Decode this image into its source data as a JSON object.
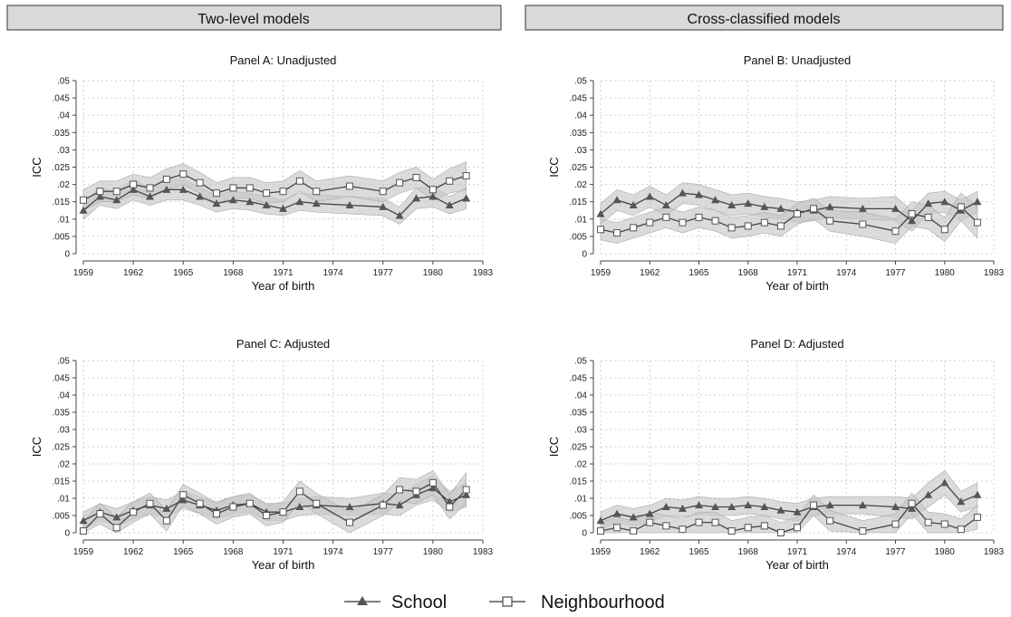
{
  "headers": [
    "Two-level models",
    "Cross-classified models"
  ],
  "legend": {
    "school": "School",
    "neighbourhood": "Neighbourhood"
  },
  "colors": {
    "header_bg": "#d9d9d9",
    "school": "#555555",
    "neighbourhood": "#555555",
    "ci_band": "#c8c8c8",
    "grid": "#d0d0d0"
  },
  "chart_data": [
    {
      "type": "line",
      "title": "Panel A: Unadjusted",
      "xlabel": "Year of birth",
      "ylabel": "ICC",
      "xlim": [
        1959,
        1983
      ],
      "ylim": [
        0,
        0.05
      ],
      "xticks": [
        1959,
        1962,
        1965,
        1968,
        1971,
        1974,
        1977,
        1980,
        1983
      ],
      "yticks": [
        0,
        0.005,
        0.01,
        0.015,
        0.02,
        0.025,
        0.03,
        0.035,
        0.04,
        0.045,
        0.05
      ],
      "ytick_labels": [
        "0",
        ".005",
        ".01",
        ".015",
        ".02",
        ".025",
        ".03",
        ".035",
        ".04",
        ".045",
        ".05"
      ],
      "grid": true,
      "series": [
        {
          "name": "School",
          "marker": "triangle",
          "x": [
            1959,
            1960,
            1961,
            1962,
            1963,
            1964,
            1965,
            1966,
            1967,
            1968,
            1969,
            1970,
            1971,
            1972,
            1973,
            1975,
            1977,
            1978,
            1979,
            1980,
            1981,
            1982
          ],
          "values": [
            0.0125,
            0.0165,
            0.0155,
            0.0185,
            0.0165,
            0.0185,
            0.0185,
            0.0165,
            0.0145,
            0.0155,
            0.015,
            0.014,
            0.013,
            0.015,
            0.0145,
            0.014,
            0.0135,
            0.011,
            0.016,
            0.0165,
            0.014,
            0.016
          ],
          "lower": [
            0.01,
            0.014,
            0.013,
            0.0155,
            0.014,
            0.0155,
            0.0155,
            0.014,
            0.012,
            0.013,
            0.0125,
            0.0115,
            0.011,
            0.0125,
            0.012,
            0.0115,
            0.011,
            0.0085,
            0.013,
            0.0135,
            0.0115,
            0.013
          ],
          "upper": [
            0.015,
            0.019,
            0.018,
            0.0215,
            0.019,
            0.0215,
            0.0215,
            0.019,
            0.017,
            0.018,
            0.0175,
            0.0165,
            0.0155,
            0.0175,
            0.017,
            0.0165,
            0.016,
            0.0135,
            0.019,
            0.0195,
            0.0165,
            0.019
          ]
        },
        {
          "name": "Neighbourhood",
          "marker": "square",
          "x": [
            1959,
            1960,
            1961,
            1962,
            1963,
            1964,
            1965,
            1966,
            1967,
            1968,
            1969,
            1970,
            1971,
            1972,
            1973,
            1975,
            1977,
            1978,
            1979,
            1980,
            1981,
            1982
          ],
          "values": [
            0.0155,
            0.018,
            0.018,
            0.02,
            0.019,
            0.0215,
            0.023,
            0.0205,
            0.0175,
            0.019,
            0.019,
            0.0175,
            0.018,
            0.021,
            0.018,
            0.0195,
            0.018,
            0.0205,
            0.022,
            0.0185,
            0.021,
            0.0225
          ],
          "lower": [
            0.0125,
            0.015,
            0.015,
            0.017,
            0.016,
            0.0185,
            0.02,
            0.0175,
            0.0145,
            0.016,
            0.016,
            0.0145,
            0.015,
            0.018,
            0.015,
            0.0165,
            0.015,
            0.0175,
            0.019,
            0.0155,
            0.0175,
            0.0185
          ],
          "upper": [
            0.0185,
            0.021,
            0.021,
            0.023,
            0.022,
            0.0245,
            0.026,
            0.0235,
            0.0205,
            0.022,
            0.022,
            0.0205,
            0.021,
            0.024,
            0.021,
            0.0225,
            0.021,
            0.0235,
            0.025,
            0.0215,
            0.0245,
            0.0265
          ]
        }
      ]
    },
    {
      "type": "line",
      "title": "Panel B: Unadjusted",
      "xlabel": "Year of birth",
      "ylabel": "ICC",
      "xlim": [
        1959,
        1983
      ],
      "ylim": [
        0,
        0.05
      ],
      "xticks": [
        1959,
        1962,
        1965,
        1968,
        1971,
        1974,
        1977,
        1980,
        1983
      ],
      "yticks": [
        0,
        0.005,
        0.01,
        0.015,
        0.02,
        0.025,
        0.03,
        0.035,
        0.04,
        0.045,
        0.05
      ],
      "ytick_labels": [
        "0",
        ".005",
        ".01",
        ".015",
        ".02",
        ".025",
        ".03",
        ".035",
        ".04",
        ".045",
        ".05"
      ],
      "grid": true,
      "series": [
        {
          "name": "School",
          "marker": "triangle",
          "x": [
            1959,
            1960,
            1961,
            1962,
            1963,
            1964,
            1965,
            1966,
            1967,
            1968,
            1969,
            1970,
            1971,
            1972,
            1973,
            1975,
            1977,
            1978,
            1979,
            1980,
            1981,
            1982
          ],
          "values": [
            0.0115,
            0.0155,
            0.014,
            0.0165,
            0.014,
            0.0175,
            0.017,
            0.0155,
            0.014,
            0.0145,
            0.0135,
            0.013,
            0.012,
            0.0125,
            0.0135,
            0.013,
            0.013,
            0.0095,
            0.0145,
            0.015,
            0.0125,
            0.015
          ],
          "lower": [
            0.0085,
            0.0125,
            0.011,
            0.0135,
            0.011,
            0.0145,
            0.014,
            0.0125,
            0.011,
            0.0115,
            0.0105,
            0.01,
            0.009,
            0.0095,
            0.0105,
            0.01,
            0.0095,
            0.0065,
            0.0115,
            0.012,
            0.0095,
            0.012
          ],
          "upper": [
            0.0145,
            0.0185,
            0.017,
            0.0195,
            0.017,
            0.0205,
            0.02,
            0.0185,
            0.017,
            0.0175,
            0.0165,
            0.016,
            0.015,
            0.0155,
            0.0165,
            0.016,
            0.0165,
            0.0125,
            0.0175,
            0.018,
            0.0155,
            0.018
          ]
        },
        {
          "name": "Neighbourhood",
          "marker": "square",
          "x": [
            1959,
            1960,
            1961,
            1962,
            1963,
            1964,
            1965,
            1966,
            1967,
            1968,
            1969,
            1970,
            1971,
            1972,
            1973,
            1975,
            1977,
            1978,
            1979,
            1980,
            1981,
            1982
          ],
          "values": [
            0.007,
            0.006,
            0.0075,
            0.009,
            0.0105,
            0.009,
            0.0105,
            0.0095,
            0.0075,
            0.008,
            0.009,
            0.008,
            0.0115,
            0.013,
            0.0095,
            0.0085,
            0.0065,
            0.0115,
            0.0105,
            0.007,
            0.0135,
            0.009
          ],
          "lower": [
            0.004,
            0.003,
            0.0045,
            0.006,
            0.0075,
            0.006,
            0.0075,
            0.0065,
            0.0045,
            0.005,
            0.006,
            0.005,
            0.0085,
            0.01,
            0.0065,
            0.005,
            0.003,
            0.008,
            0.007,
            0.0035,
            0.0095,
            0.0045
          ],
          "upper": [
            0.01,
            0.009,
            0.0105,
            0.012,
            0.0135,
            0.012,
            0.0135,
            0.0125,
            0.0105,
            0.011,
            0.012,
            0.011,
            0.0145,
            0.016,
            0.0125,
            0.012,
            0.01,
            0.015,
            0.014,
            0.0105,
            0.0175,
            0.0135
          ]
        }
      ]
    },
    {
      "type": "line",
      "title": "Panel C: Adjusted",
      "xlabel": "Year of birth",
      "ylabel": "ICC",
      "xlim": [
        1959,
        1983
      ],
      "ylim": [
        0,
        0.05
      ],
      "xticks": [
        1959,
        1962,
        1965,
        1968,
        1971,
        1974,
        1977,
        1980,
        1983
      ],
      "yticks": [
        0,
        0.005,
        0.01,
        0.015,
        0.02,
        0.025,
        0.03,
        0.035,
        0.04,
        0.045,
        0.05
      ],
      "ytick_labels": [
        "0",
        ".005",
        ".01",
        ".015",
        ".02",
        ".025",
        ".03",
        ".035",
        ".04",
        ".045",
        ".05"
      ],
      "grid": true,
      "series": [
        {
          "name": "School",
          "marker": "triangle",
          "x": [
            1959,
            1960,
            1961,
            1962,
            1963,
            1964,
            1965,
            1966,
            1967,
            1968,
            1969,
            1970,
            1971,
            1972,
            1973,
            1975,
            1977,
            1978,
            1979,
            1980,
            1981,
            1982
          ],
          "values": [
            0.0035,
            0.006,
            0.0045,
            0.0065,
            0.008,
            0.007,
            0.0095,
            0.008,
            0.0065,
            0.008,
            0.0085,
            0.006,
            0.006,
            0.0075,
            0.008,
            0.0075,
            0.0085,
            0.008,
            0.011,
            0.013,
            0.009,
            0.011
          ],
          "lower": [
            0.001,
            0.0035,
            0.002,
            0.004,
            0.0055,
            0.0045,
            0.007,
            0.0055,
            0.004,
            0.0055,
            0.006,
            0.0035,
            0.0035,
            0.005,
            0.0055,
            0.005,
            0.0055,
            0.005,
            0.008,
            0.0095,
            0.006,
            0.0075
          ],
          "upper": [
            0.006,
            0.0085,
            0.007,
            0.009,
            0.0105,
            0.0095,
            0.012,
            0.0105,
            0.009,
            0.0105,
            0.011,
            0.0085,
            0.0085,
            0.01,
            0.0105,
            0.01,
            0.0115,
            0.011,
            0.014,
            0.0165,
            0.012,
            0.0145
          ]
        },
        {
          "name": "Neighbourhood",
          "marker": "square",
          "x": [
            1959,
            1960,
            1961,
            1962,
            1963,
            1964,
            1965,
            1966,
            1967,
            1968,
            1969,
            1970,
            1971,
            1972,
            1973,
            1975,
            1977,
            1978,
            1979,
            1980,
            1981,
            1982
          ],
          "values": [
            0.0005,
            0.0055,
            0.0015,
            0.006,
            0.0085,
            0.0035,
            0.011,
            0.0085,
            0.0055,
            0.0075,
            0.0085,
            0.005,
            0.006,
            0.012,
            0.0085,
            0.003,
            0.008,
            0.0125,
            0.012,
            0.0145,
            0.0075,
            0.0125
          ],
          "lower": [
            0.0,
            0.0025,
            0.0,
            0.003,
            0.0055,
            0.0005,
            0.008,
            0.0055,
            0.0025,
            0.0045,
            0.0055,
            0.002,
            0.003,
            0.009,
            0.0055,
            0.0,
            0.005,
            0.009,
            0.0085,
            0.011,
            0.004,
            0.0085
          ],
          "upper": [
            0.0035,
            0.0085,
            0.0045,
            0.009,
            0.0115,
            0.0065,
            0.014,
            0.0115,
            0.0085,
            0.0105,
            0.0115,
            0.008,
            0.009,
            0.015,
            0.0115,
            0.006,
            0.011,
            0.016,
            0.0155,
            0.018,
            0.011,
            0.0175
          ]
        }
      ]
    },
    {
      "type": "line",
      "title": "Panel D: Adjusted",
      "xlabel": "Year of birth",
      "ylabel": "ICC",
      "xlim": [
        1959,
        1983
      ],
      "ylim": [
        0,
        0.05
      ],
      "xticks": [
        1959,
        1962,
        1965,
        1968,
        1971,
        1974,
        1977,
        1980,
        1983
      ],
      "yticks": [
        0,
        0.005,
        0.01,
        0.015,
        0.02,
        0.025,
        0.03,
        0.035,
        0.04,
        0.045,
        0.05
      ],
      "ytick_labels": [
        "0",
        ".005",
        ".01",
        ".015",
        ".02",
        ".025",
        ".03",
        ".035",
        ".04",
        ".045",
        ".05"
      ],
      "grid": true,
      "series": [
        {
          "name": "School",
          "marker": "triangle",
          "x": [
            1959,
            1960,
            1961,
            1962,
            1963,
            1964,
            1965,
            1966,
            1967,
            1968,
            1969,
            1970,
            1971,
            1972,
            1973,
            1975,
            1977,
            1978,
            1979,
            1980,
            1981,
            1982
          ],
          "values": [
            0.0035,
            0.0055,
            0.0045,
            0.0055,
            0.0075,
            0.007,
            0.008,
            0.0075,
            0.0075,
            0.008,
            0.0075,
            0.0065,
            0.006,
            0.0075,
            0.008,
            0.008,
            0.0075,
            0.007,
            0.011,
            0.0145,
            0.009,
            0.011
          ],
          "lower": [
            0.001,
            0.003,
            0.002,
            0.003,
            0.005,
            0.0045,
            0.0055,
            0.005,
            0.005,
            0.0055,
            0.005,
            0.004,
            0.0035,
            0.005,
            0.0055,
            0.0055,
            0.0045,
            0.004,
            0.0075,
            0.011,
            0.006,
            0.0075
          ],
          "upper": [
            0.006,
            0.008,
            0.007,
            0.008,
            0.01,
            0.0095,
            0.0105,
            0.01,
            0.01,
            0.0105,
            0.01,
            0.009,
            0.0085,
            0.01,
            0.0105,
            0.0105,
            0.0105,
            0.01,
            0.0145,
            0.018,
            0.012,
            0.0145
          ]
        },
        {
          "name": "Neighbourhood",
          "marker": "square",
          "x": [
            1959,
            1960,
            1961,
            1962,
            1963,
            1964,
            1965,
            1966,
            1967,
            1968,
            1969,
            1970,
            1971,
            1972,
            1973,
            1975,
            1977,
            1978,
            1979,
            1980,
            1981,
            1982
          ],
          "values": [
            0.0005,
            0.0015,
            0.0005,
            0.003,
            0.002,
            0.001,
            0.003,
            0.003,
            0.0005,
            0.0015,
            0.002,
            0.0,
            0.0015,
            0.008,
            0.0035,
            0.0005,
            0.0025,
            0.0085,
            0.003,
            0.0025,
            0.001,
            0.0045
          ],
          "lower": [
            0.0,
            0.0,
            0.0,
            0.0,
            0.0,
            0.0,
            0.0,
            0.0,
            0.0,
            0.0,
            0.0,
            0.0,
            0.0,
            0.005,
            0.0005,
            0.0,
            0.0,
            0.0055,
            0.0,
            0.0,
            0.0,
            0.001
          ],
          "upper": [
            0.003,
            0.0045,
            0.0035,
            0.006,
            0.005,
            0.004,
            0.006,
            0.006,
            0.0035,
            0.0045,
            0.005,
            0.003,
            0.0045,
            0.011,
            0.0065,
            0.0035,
            0.0055,
            0.0115,
            0.006,
            0.0055,
            0.004,
            0.008
          ]
        }
      ]
    }
  ]
}
